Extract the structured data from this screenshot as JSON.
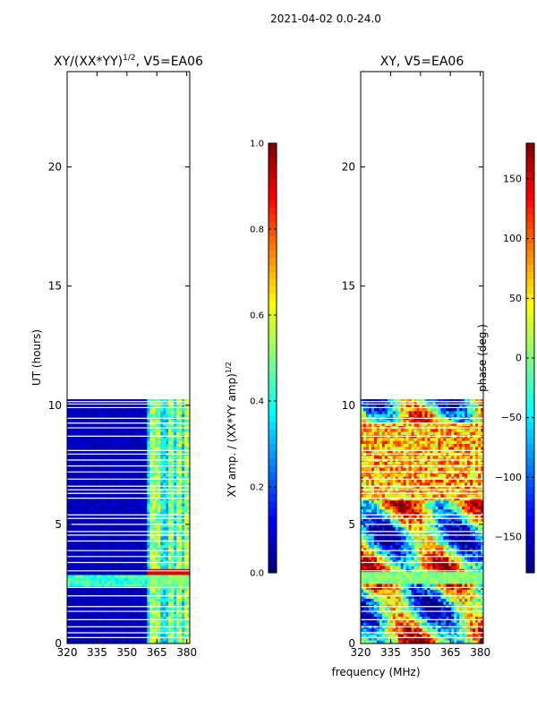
{
  "suptitle": "2021-04-02 0.0-24.0",
  "xlabel_shared": "frequency (MHz)",
  "chart_data": [
    {
      "type": "heatmap",
      "title": "XY/(XX*YY)^{1/2}, V5=EA06",
      "title_main": "XY/(XX*YY)",
      "title_sup": "1/2",
      "title_rest": ", V5=EA06",
      "xlabel": "",
      "ylabel": "UT (hours)",
      "xlim": [
        320,
        381.5
      ],
      "ylim": [
        0,
        24
      ],
      "xticks": [
        320,
        335,
        350,
        365,
        380
      ],
      "yticks": [
        0,
        5,
        10,
        15,
        20
      ],
      "data_extent_hours": [
        0,
        10.25
      ],
      "colorbar": {
        "label_main": "XY amp. / (XX*YY amp)",
        "label_sup": "1/2",
        "range": [
          0.0,
          1.0
        ],
        "ticks": [
          "0.0",
          "0.2",
          "0.4",
          "0.6",
          "0.8",
          "1.0"
        ],
        "tick_values": [
          0.0,
          0.2,
          0.4,
          0.6,
          0.8,
          1.0
        ]
      }
    },
    {
      "type": "heatmap",
      "title": "XY, V5=EA06",
      "xlabel": "frequency (MHz)",
      "ylabel": "",
      "xlim": [
        320,
        381.5
      ],
      "ylim": [
        0,
        24
      ],
      "xticks": [
        320,
        335,
        350,
        365,
        380
      ],
      "yticks": [
        0,
        5,
        10,
        15,
        20
      ],
      "data_extent_hours": [
        0,
        10.25
      ],
      "colorbar": {
        "label": "phase (deg.)",
        "range": [
          -180,
          180
        ],
        "ticks": [
          "−150",
          "−100",
          "−50",
          "0",
          "50",
          "100",
          "150"
        ],
        "tick_values": [
          -150,
          -100,
          -50,
          0,
          50,
          100,
          150
        ]
      }
    }
  ]
}
